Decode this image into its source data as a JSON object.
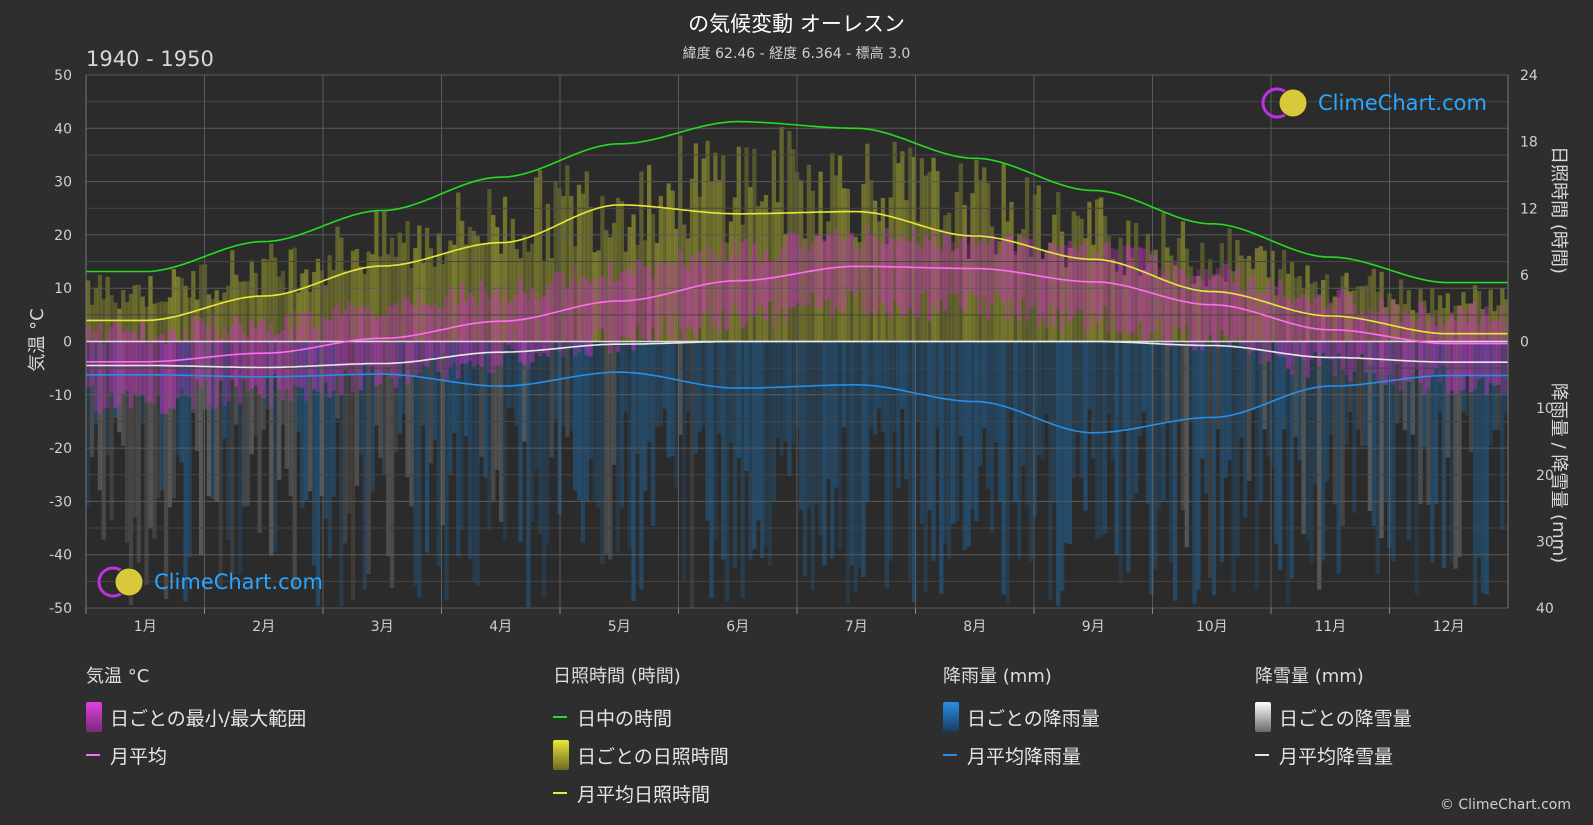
{
  "title": "の気候変動 オーレスン",
  "subtitle": "緯度 62.46 - 経度 6.364 - 標高 3.0",
  "period": "1940 - 1950",
  "logo_text": "ClimeChart.com",
  "copyright": "© ClimeChart.com",
  "axes": {
    "left_title": "気温 °C",
    "right_top_title": "日照時間 (時間)",
    "right_bottom_title": "降雨量 / 降雪量 (mm)"
  },
  "legend": {
    "temperature": {
      "header": "気温 °C",
      "items": [
        "日ごとの最小/最大範囲",
        "月平均"
      ]
    },
    "sunshine": {
      "header": "日照時間 (時間)",
      "items": [
        "日中の時間",
        "日ごとの日照時間",
        "月平均日照時間"
      ]
    },
    "rain": {
      "header": "降雨量 (mm)",
      "items": [
        "日ごとの降雨量",
        "月平均降雨量"
      ]
    },
    "snow": {
      "header": "降雪量 (mm)",
      "items": [
        "日ごとの降雪量",
        "月平均降雪量"
      ]
    }
  },
  "colors": {
    "background": "#2e2e2e",
    "grid": "#5a5a5a",
    "daylight": "#22dd22",
    "sunshine_avg": "#e8e83a",
    "sunshine_bars": "#9a9a30",
    "temp_avg": "#ff6ef0",
    "temp_range": "#d030c8",
    "rain_avg": "#2a8ee6",
    "rain_bars": "#1e6fb0",
    "snow_avg": "#e8e8e8",
    "snow_bars": "#8a8a8a",
    "logo_text": "#2aa6ff"
  },
  "chart_data": {
    "type": "line",
    "categories": [
      "1月",
      "2月",
      "3月",
      "4月",
      "5月",
      "6月",
      "7月",
      "8月",
      "9月",
      "10月",
      "11月",
      "12月"
    ],
    "y_left": {
      "label": "気温 °C",
      "min": -50,
      "max": 50,
      "ticks": [
        50,
        40,
        30,
        20,
        10,
        0,
        -10,
        -20,
        -30,
        -40,
        -50
      ]
    },
    "y_right_top": {
      "label": "日照時間 (時間)",
      "min": 0,
      "max": 24,
      "ticks": [
        24,
        18,
        12,
        6,
        0
      ]
    },
    "y_right_bottom": {
      "label": "降雨量 / 降雪量 (mm)",
      "min": 0,
      "max": 40,
      "ticks": [
        0,
        10,
        20,
        30,
        40
      ]
    },
    "series": [
      {
        "name": "日中の時間",
        "axis": "hours",
        "values": [
          6.3,
          9.0,
          11.8,
          14.8,
          17.8,
          19.8,
          19.2,
          16.5,
          13.6,
          10.6,
          7.6,
          5.3
        ]
      },
      {
        "name": "月平均日照時間",
        "axis": "hours",
        "values": [
          1.9,
          4.1,
          6.8,
          8.9,
          12.3,
          11.5,
          11.7,
          9.5,
          7.4,
          4.5,
          2.3,
          0.7
        ]
      },
      {
        "name": "月平均",
        "axis": "temperature",
        "values": [
          -3.8,
          -2.2,
          0.6,
          3.8,
          7.6,
          11.4,
          14.1,
          13.7,
          11.2,
          6.9,
          2.2,
          -0.4
        ]
      },
      {
        "name": "月平均降雨量",
        "axis": "precip",
        "values": [
          5.0,
          5.3,
          4.9,
          6.7,
          4.6,
          7.0,
          6.5,
          9.0,
          13.7,
          11.4,
          6.7,
          5.1
        ]
      },
      {
        "name": "月平均降雪量",
        "axis": "precip",
        "values": [
          3.6,
          3.9,
          3.3,
          1.6,
          0.4,
          0.0,
          0.0,
          0.0,
          0.0,
          0.6,
          2.4,
          3.1
        ]
      }
    ],
    "grid": true
  }
}
